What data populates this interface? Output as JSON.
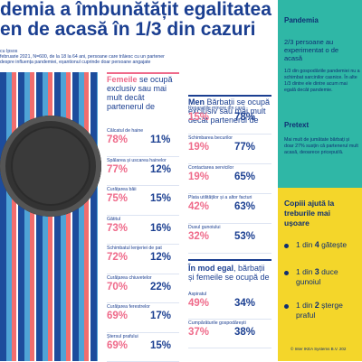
{
  "title": {
    "line1": "demia a îmbunătățit egalitatea",
    "line2": "en de acasă în 1/3 din cazuri"
  },
  "subtitle": {
    "line1": "cu Ipsos",
    "line2": "februarie 2021, N=600, de la 18 la 64 ani, persoane care trăiesc cu un partener",
    "line3": "despre influența pandemiei, eșantionul cuprinde doar persoane angajate"
  },
  "column_women": {
    "heading_highlight": "Femeile",
    "heading_rest": " se ocupă exclusiv sau mai mult decât partenerul de",
    "rows": [
      {
        "label": "Călcatul de haine",
        "women": "78%",
        "men": "11%"
      },
      {
        "label": "Spălarea și uscarea hainelor",
        "women": "77%",
        "men": "12%"
      },
      {
        "label": "Curățarea băii",
        "women": "75%",
        "men": "15%"
      },
      {
        "label": "Gătitul",
        "women": "73%",
        "men": "16%"
      },
      {
        "label": "Schimbatul lenjeriei de pat",
        "women": "72%",
        "men": "12%"
      },
      {
        "label": "Curățarea chiuvetelor",
        "women": "70%",
        "men": "22%"
      },
      {
        "label": "Curățarea ferestrelor",
        "women": "69%",
        "men": "17%"
      },
      {
        "label": "Ștersul prafului",
        "women": "69%",
        "men": "15%"
      }
    ]
  },
  "column_men": {
    "heading_highlight": "Men",
    "heading_rest": " Bărbații se ocupă exclusiv sau mai mult decât partenerul de",
    "rows": [
      {
        "label": "Reparațiile minore din casă",
        "women": "15%",
        "men": "78%"
      },
      {
        "label": "Schimbarea becurilor",
        "women": "19%",
        "men": "77%"
      },
      {
        "label": "Contactarea servicilor",
        "women": "19%",
        "men": "65%"
      },
      {
        "label": "Plata utilităților și a altor facturi",
        "women": "42%",
        "men": "63%"
      },
      {
        "label": "Dusul gunoiului",
        "women": "32%",
        "men": "53%"
      }
    ]
  },
  "column_equal": {
    "heading_highlight": "În mod egal",
    "heading_rest": ", bărbații și femeile se ocupă de",
    "rows": [
      {
        "label": "Aspiratul",
        "women": "49%",
        "men": "34%"
      },
      {
        "label": "Cumpărăturile gospodărești",
        "women": "37%",
        "men": "38%"
      }
    ]
  },
  "right_panel": {
    "pandemic": {
      "title": "Pandemia",
      "lead": "2/3 persoane au experimentat o de acasă",
      "text": "1/3 din gospodăriile pandemiei nu a schimbat sarcinilor casnice. În alte 1/3 dintre ele dintre acum mai egală decât pandemie."
    },
    "pretext": {
      "title": "Pretext",
      "text": "Mai mult de jumătate bărbați și doar 27% susțin că partenerul mult acasă, deoarece priceput/ă."
    },
    "children": {
      "title_l1": "Copiii ajută la",
      "title_l2": "treburile mai",
      "title_l3": "ușoare",
      "items": [
        {
          "pre": "1 din ",
          "num": "4",
          "post": " gătește"
        },
        {
          "pre": "1 din ",
          "num": "3",
          "post": " duce",
          "post2": "gunoiul"
        },
        {
          "pre": "1 din ",
          "num": "2",
          "post": " șterge",
          "post2": "praful"
        }
      ]
    },
    "copyright": "© Inter IKEA Systems B.V. 202"
  },
  "colors": {
    "teal": "#2fb7a6",
    "yellow": "#f4d62a",
    "navy": "#1b3f91",
    "pink": "#ef6a8a"
  }
}
